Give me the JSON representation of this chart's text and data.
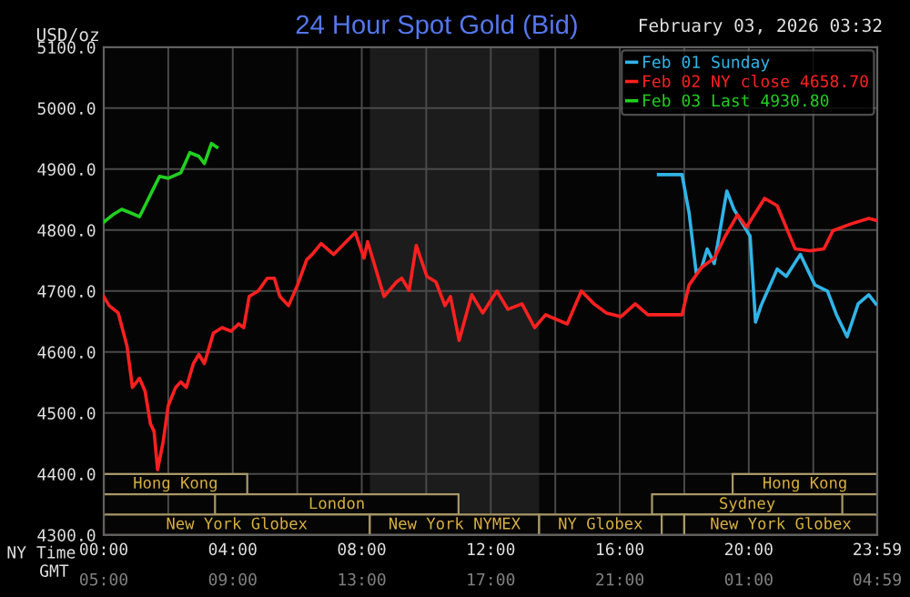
{
  "chart_data": {
    "type": "line",
    "title": "24 Hour Spot Gold (Bid)",
    "ylabel": "USD/oz",
    "xlabel": "NY Time",
    "x2label": "GMT",
    "annotations": [
      "February 03, 2026 03:32"
    ],
    "series": [
      {
        "name": "Feb 01 Sunday",
        "color": "#30b4e8",
        "x": [
          17.2,
          17.93,
          18.15,
          18.37,
          18.54,
          18.71,
          18.93,
          19.32,
          19.54,
          20.04,
          20.21,
          20.38,
          20.88,
          21.16,
          21.6,
          22.05,
          22.44,
          22.72,
          23.05,
          23.39,
          23.72,
          23.94
        ],
        "values": [
          4891,
          4891,
          4828,
          4730,
          4739,
          4769,
          4745,
          4864,
          4834,
          4790,
          4649,
          4676,
          4736,
          4724,
          4760,
          4710,
          4700,
          4661,
          4625,
          4679,
          4694,
          4679
        ]
      },
      {
        "name": "Feb 02 NY close 4658.70",
        "color": "#ff2020",
        "x": [
          0,
          0.17,
          0.45,
          0.72,
          0.89,
          1.11,
          1.28,
          1.45,
          1.56,
          1.67,
          1.84,
          2.0,
          2.23,
          2.39,
          2.56,
          2.78,
          2.95,
          3.12,
          3.4,
          3.67,
          3.95,
          4.18,
          4.34,
          4.51,
          4.79,
          5.07,
          5.29,
          5.46,
          5.73,
          6.01,
          6.29,
          6.46,
          6.74,
          7.13,
          7.52,
          7.8,
          8.07,
          8.18,
          8.69,
          9.08,
          9.24,
          9.47,
          9.69,
          10.02,
          10.3,
          10.58,
          10.75,
          11.02,
          11.41,
          11.75,
          12.19,
          12.53,
          12.97,
          13.36,
          13.7,
          14.37,
          14.81,
          15.2,
          15.59,
          16.04,
          16.48,
          16.87,
          17.93,
          18.15,
          18.54,
          18.93,
          19.27,
          19.65,
          19.93,
          20.49,
          20.88,
          21.44,
          21.88,
          22.33,
          22.61,
          23.16,
          23.72,
          23.94
        ],
        "values": [
          4691,
          4676,
          4664,
          4610,
          4542,
          4557,
          4536,
          4482,
          4470,
          4407,
          4452,
          4512,
          4542,
          4551,
          4542,
          4581,
          4596,
          4581,
          4631,
          4640,
          4634,
          4646,
          4640,
          4691,
          4700,
          4721,
          4721,
          4691,
          4676,
          4710,
          4751,
          4760,
          4778,
          4760,
          4781,
          4796,
          4754,
          4781,
          4691,
          4715,
          4721,
          4701,
          4775,
          4724,
          4715,
          4676,
          4691,
          4619,
          4694,
          4664,
          4700,
          4670,
          4679,
          4640,
          4661,
          4646,
          4700,
          4679,
          4664,
          4658,
          4679,
          4661,
          4661,
          4710,
          4739,
          4754,
          4790,
          4825,
          4805,
          4852,
          4840,
          4769,
          4766,
          4769,
          4799,
          4810,
          4819,
          4816
        ]
      },
      {
        "name": "Feb 03 Last 4930.80",
        "color": "#20d020",
        "x": [
          0,
          0.28,
          0.56,
          0.84,
          1.11,
          1.28,
          1.56,
          1.73,
          2.0,
          2.39,
          2.67,
          2.95,
          3.12,
          3.34,
          3.51
        ],
        "values": [
          4813,
          4825,
          4834,
          4828,
          4822,
          4840,
          4870,
          4888,
          4885,
          4894,
          4927,
          4921,
          4909,
          4942,
          4936
        ]
      }
    ],
    "xlim": [
      0,
      23.983
    ],
    "xticks": [
      {
        "value": 0,
        "label": "00:00"
      },
      {
        "value": 2,
        "label": null
      },
      {
        "value": 4,
        "label": "04:00"
      },
      {
        "value": 6,
        "label": null
      },
      {
        "value": 8,
        "label": "08:00"
      },
      {
        "value": 10,
        "label": null
      },
      {
        "value": 12,
        "label": "12:00"
      },
      {
        "value": 14,
        "label": null
      },
      {
        "value": 16,
        "label": "16:00"
      },
      {
        "value": 18,
        "label": null
      },
      {
        "value": 20,
        "label": "20:00"
      },
      {
        "value": 22,
        "label": null
      },
      {
        "value": 23.983,
        "label": "23:59"
      }
    ],
    "x2lim": [
      "2026-02-02T05:00",
      "2026-02-03T04:59"
    ],
    "x2ticks": [
      {
        "value": "2026-02-02T05:00",
        "label": "05:00"
      },
      {
        "value": "2026-02-02T09:00",
        "label": "09:00"
      },
      {
        "value": "2026-02-02T13:00",
        "label": "13:00"
      },
      {
        "value": "2026-02-02T17:00",
        "label": "17:00"
      },
      {
        "value": "2026-02-02T21:00",
        "label": "21:00"
      },
      {
        "value": "2026-02-03T01:00",
        "label": "01:00"
      },
      {
        "value": "2026-02-03T04:59",
        "label": "04:59"
      }
    ],
    "ylim": [
      4300,
      5100
    ],
    "yticks": [
      {
        "value": 4300,
        "label": "4300.0"
      },
      {
        "value": 4400,
        "label": "4400.0"
      },
      {
        "value": 4500,
        "label": "4500.0"
      },
      {
        "value": 4600,
        "label": "4600.0"
      },
      {
        "value": 4700,
        "label": "4700.0"
      },
      {
        "value": 4800,
        "label": "4800.0"
      },
      {
        "value": 4900,
        "label": "4900.0"
      },
      {
        "value": 5000,
        "label": "5000.0"
      },
      {
        "value": 5100,
        "label": "5100.0"
      }
    ],
    "bands": [
      {
        "axis": "x",
        "from": 8.25,
        "to": 13.5,
        "label": null,
        "color": "#1c1c1c"
      },
      {
        "axis": "x",
        "from": 0,
        "to": 4.45,
        "label": "Hong Kong"
      },
      {
        "axis": "x",
        "from": 19.5,
        "to": 23.983,
        "label": "Hong Kong"
      },
      {
        "axis": "x",
        "from": 3.45,
        "to": 11,
        "label": "London"
      },
      {
        "axis": "x",
        "from": 17,
        "to": 22.9,
        "label": "Sydney"
      },
      {
        "axis": "x",
        "from": 0,
        "to": 8.25,
        "label": "New York Globex"
      },
      {
        "axis": "x",
        "from": 8.25,
        "to": 13.5,
        "label": "New York NYMEX"
      },
      {
        "axis": "x",
        "from": 13.5,
        "to": 17.3,
        "label": "NY Globex"
      },
      {
        "axis": "x",
        "from": 17.3,
        "to": 18,
        "label": null
      },
      {
        "axis": "x",
        "from": 18,
        "to": 23.983,
        "label": "New York Globex"
      }
    ],
    "grid": true,
    "legend": "top right",
    "marker": "none",
    "line_style": "solid"
  }
}
